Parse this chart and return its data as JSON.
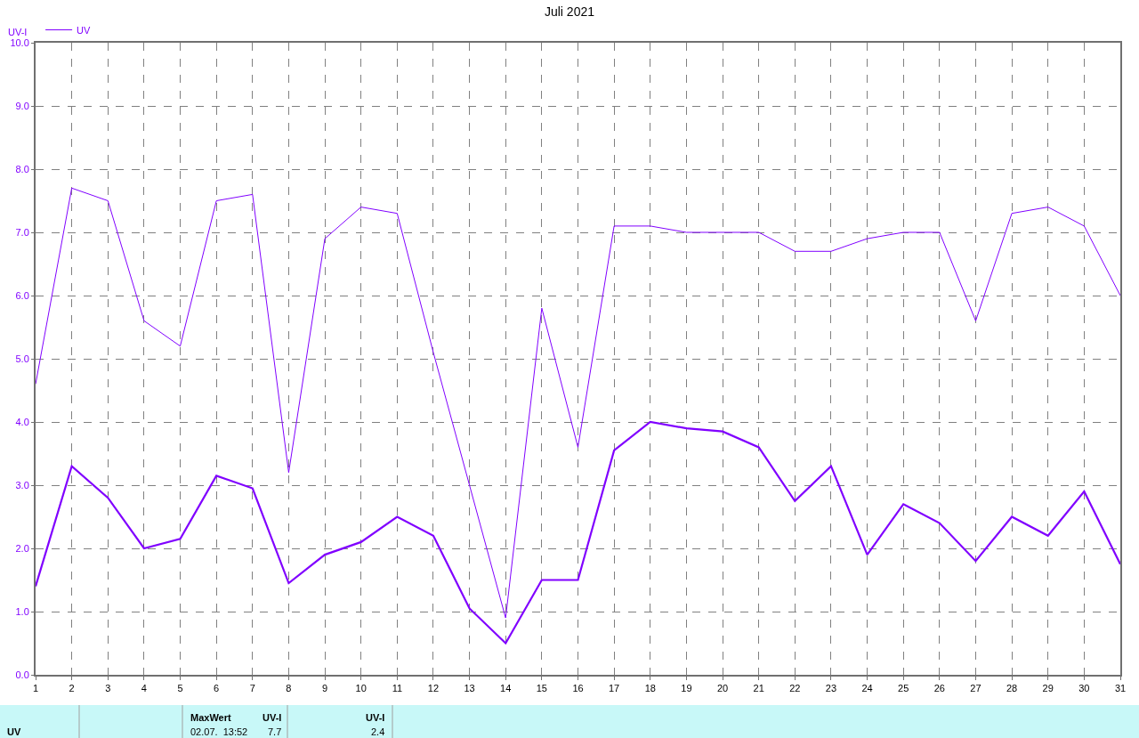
{
  "chart_data": {
    "type": "line",
    "title": "Juli 2021",
    "ylabel": "UV-I",
    "x": [
      1,
      2,
      3,
      4,
      5,
      6,
      7,
      8,
      9,
      10,
      11,
      12,
      13,
      14,
      15,
      16,
      17,
      18,
      19,
      20,
      21,
      22,
      23,
      24,
      25,
      26,
      27,
      28,
      29,
      30,
      31
    ],
    "series": [
      {
        "name": "UV",
        "color": "#8000ff",
        "values": [
          4.6,
          7.7,
          7.5,
          5.6,
          5.2,
          7.5,
          7.6,
          3.2,
          6.9,
          7.4,
          7.3,
          5.1,
          3.0,
          0.9,
          5.8,
          3.6,
          7.1,
          7.1,
          7.0,
          7.0,
          7.0,
          6.7,
          6.7,
          6.9,
          7.0,
          7.0,
          5.6,
          7.3,
          7.4,
          7.1,
          6.0
        ]
      },
      {
        "color": "#8000ff",
        "values": [
          1.4,
          3.3,
          2.8,
          2.0,
          2.15,
          3.15,
          2.95,
          1.45,
          1.9,
          2.1,
          2.5,
          2.2,
          1.05,
          0.5,
          1.5,
          1.5,
          3.55,
          4.0,
          3.9,
          3.85,
          3.6,
          2.75,
          3.3,
          1.9,
          2.7,
          2.4,
          1.8,
          2.5,
          2.2,
          2.9,
          1.75
        ]
      }
    ],
    "xlim": [
      1,
      31
    ],
    "xticks": [
      1,
      2,
      3,
      4,
      5,
      6,
      7,
      8,
      9,
      10,
      11,
      12,
      13,
      14,
      15,
      16,
      17,
      18,
      19,
      20,
      21,
      22,
      23,
      24,
      25,
      26,
      27,
      28,
      29,
      30,
      31
    ],
    "ylim": [
      0,
      10
    ],
    "yticks": [
      {
        "value": 0,
        "label": "0.0"
      },
      {
        "value": 1,
        "label": "1.0"
      },
      {
        "value": 2,
        "label": "2.0"
      },
      {
        "value": 3,
        "label": "3.0"
      },
      {
        "value": 4,
        "label": "4.0"
      },
      {
        "value": 5,
        "label": "5.0"
      },
      {
        "value": 6,
        "label": "6.0"
      },
      {
        "value": 7,
        "label": "7.0"
      },
      {
        "value": 8,
        "label": "8.0"
      },
      {
        "value": 9,
        "label": "9.0"
      },
      {
        "value": 10,
        "label": "10.0"
      }
    ],
    "grid": true,
    "legend": "top left",
    "marker": "none",
    "line_style": "solid",
    "annotations": [
      "UV",
      "MaxWert",
      "UV-I",
      "02.07.  13:52",
      "7.7",
      "UV-I",
      "2.4"
    ]
  }
}
